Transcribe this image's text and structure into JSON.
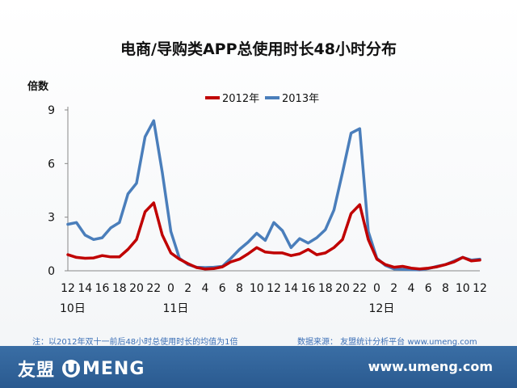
{
  "chart_data": {
    "type": "line",
    "title": "电商/导购类APP总使用时长48小时分布",
    "ylabel": "倍数",
    "xlabel": "",
    "ylim": [
      0,
      9
    ],
    "yticks": [
      0,
      3,
      6,
      9
    ],
    "grid": false,
    "legend_position": "top-center",
    "x_tick_labels": [
      "12",
      "14",
      "16",
      "18",
      "20",
      "22",
      "0",
      "2",
      "4",
      "6",
      "8",
      "10",
      "12",
      "14",
      "16",
      "18",
      "20",
      "22",
      "0",
      "2",
      "4",
      "6",
      "8",
      "10",
      "12"
    ],
    "day_labels": [
      {
        "label": "10日",
        "tick_index": 0
      },
      {
        "label": "11日",
        "tick_index": 6
      },
      {
        "label": "12日",
        "tick_index": 18
      }
    ],
    "series": [
      {
        "name": "2012年",
        "color": "#c00000",
        "values": [
          0.9,
          0.75,
          0.7,
          0.72,
          0.85,
          0.78,
          0.78,
          1.2,
          1.75,
          3.3,
          3.8,
          2.0,
          1.0,
          0.65,
          0.4,
          0.18,
          0.1,
          0.12,
          0.22,
          0.5,
          0.65,
          0.95,
          1.3,
          1.05,
          1.0,
          1.0,
          0.85,
          0.95,
          1.2,
          0.9,
          1.0,
          1.3,
          1.75,
          3.2,
          3.7,
          1.75,
          0.65,
          0.35,
          0.2,
          0.25,
          0.15,
          0.1,
          0.15,
          0.22,
          0.35,
          0.5,
          0.75,
          0.55,
          0.6
        ]
      },
      {
        "name": "2013年",
        "color": "#4a7ebb",
        "values": [
          2.6,
          2.7,
          2.0,
          1.75,
          1.85,
          2.4,
          2.7,
          4.3,
          4.9,
          7.5,
          8.4,
          5.5,
          2.2,
          0.7,
          0.35,
          0.2,
          0.18,
          0.2,
          0.25,
          0.7,
          1.2,
          1.6,
          2.1,
          1.7,
          2.7,
          2.25,
          1.3,
          1.8,
          1.55,
          1.85,
          2.3,
          3.4,
          5.5,
          7.7,
          7.95,
          2.2,
          0.7,
          0.3,
          0.1,
          0.08,
          0.07,
          0.05,
          0.12,
          0.25,
          0.35,
          0.55,
          0.75,
          0.6,
          0.65
        ]
      }
    ]
  },
  "footnote_left": "注：以2012年双十一前后48小时总使用时长的均值为1倍",
  "footnote_right": "数据来源： 友盟统计分析平台 www.umeng.com",
  "footer": {
    "brand_cn": "友盟",
    "brand_en": "MENG",
    "url": "www.umeng.com",
    "bar_color": "#2f6299"
  }
}
